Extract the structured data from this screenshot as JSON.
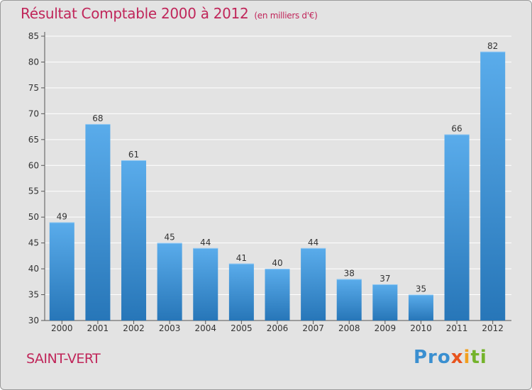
{
  "chart_data": {
    "type": "bar",
    "title": "Résultat Comptable 2000 à 2012",
    "subtitle": "(en milliers d'€)",
    "categories": [
      "2000",
      "2001",
      "2002",
      "2003",
      "2004",
      "2005",
      "2006",
      "2007",
      "2008",
      "2009",
      "2010",
      "2011",
      "2012"
    ],
    "values": [
      49,
      68,
      61,
      45,
      44,
      41,
      40,
      44,
      38,
      37,
      35,
      66,
      82
    ],
    "ylim": [
      30,
      85
    ],
    "yticks": [
      30,
      35,
      40,
      45,
      50,
      55,
      60,
      65,
      70,
      75,
      80,
      85
    ],
    "xlabel": "",
    "ylabel": "",
    "grid": true,
    "bar_color_top": "#5aaceb",
    "bar_color_bottom": "#2776b8"
  },
  "commune": "SAINT-VERT",
  "logo": {
    "p1": "Pro",
    "p2": "x",
    "p3": "i",
    "p4": "ti"
  }
}
